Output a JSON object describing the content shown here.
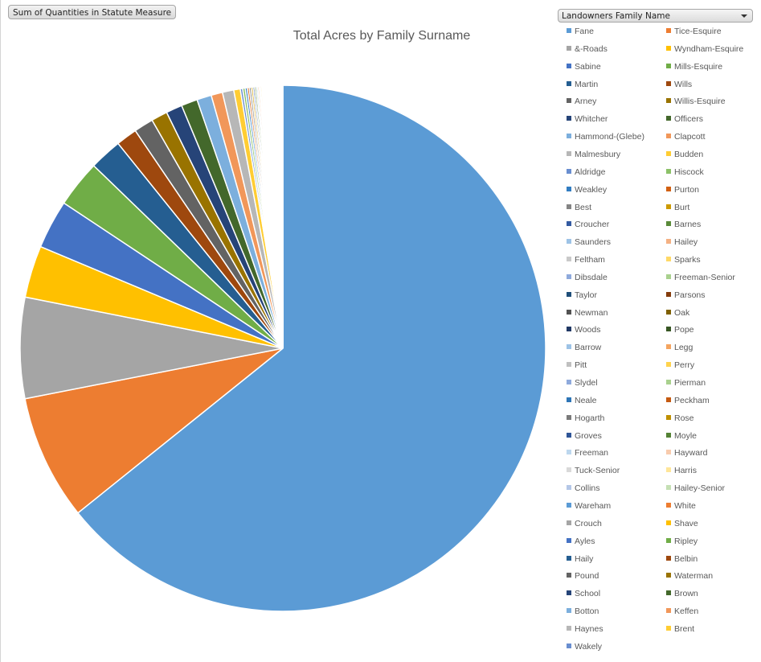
{
  "field_button": {
    "label": "Sum of Quantities in Statute Measure"
  },
  "legend_filter": {
    "label": "Landowners Family Name"
  },
  "chart_data": {
    "type": "pie",
    "title": "Total Acres by Family Surname",
    "legend_position": "right",
    "start_angle": 0,
    "direction": "clockwise",
    "unit": "percent of total (estimated)",
    "categories": [
      "Fane",
      "Tice-Esquire",
      "&-Roads",
      "Wyndham-Esquire",
      "Sabine",
      "Mills-Esquire",
      "Martin",
      "Wills",
      "Arney",
      "Willis-Esquire",
      "Whitcher",
      "Officers",
      "Hammond-(Glebe)",
      "Clapcott",
      "Malmesbury",
      "Budden",
      "Aldridge",
      "Hiscock",
      "Weakley",
      "Purton",
      "Best",
      "Burt",
      "Croucher",
      "Barnes",
      "Saunders",
      "Hailey",
      "Feltham",
      "Sparks",
      "Dibsdale",
      "Freeman-Senior",
      "Taylor",
      "Parsons",
      "Newman",
      "Oak",
      "Woods",
      "Pope",
      "Barrow",
      "Legg",
      "Pitt",
      "Perry",
      "Slydel",
      "Pierman",
      "Neale",
      "Peckham",
      "Hogarth",
      "Rose",
      "Groves",
      "Moyle",
      "Freeman",
      "Hayward",
      "Tuck-Senior",
      "Harris",
      "Collins",
      "Hailey-Senior",
      "Wareham",
      "White",
      "Crouch",
      "Shave",
      "Ayles",
      "Ripley",
      "Haily",
      "Belbin",
      "Pound",
      "Waterman",
      "School",
      "Brown",
      "Botton",
      "Keffen",
      "Haynes",
      "Brent",
      "Wakely"
    ],
    "values": [
      64.3,
      7.7,
      6.2,
      3.2,
      3.0,
      2.9,
      2.0,
      1.3,
      1.2,
      1.0,
      1.0,
      1.0,
      0.9,
      0.7,
      0.7,
      0.4,
      0.15,
      0.15,
      0.13,
      0.12,
      0.12,
      0.11,
      0.1,
      0.1,
      0.09,
      0.09,
      0.08,
      0.08,
      0.07,
      0.07,
      0.07,
      0.06,
      0.06,
      0.06,
      0.05,
      0.05,
      0.05,
      0.05,
      0.04,
      0.04,
      0.04,
      0.04,
      0.04,
      0.03,
      0.03,
      0.03,
      0.03,
      0.03,
      0.03,
      0.02,
      0.02,
      0.02,
      0.02,
      0.02,
      0.02,
      0.02,
      0.02,
      0.02,
      0.01,
      0.01,
      0.01,
      0.01,
      0.01,
      0.01,
      0.01,
      0.01,
      0.01,
      0.01,
      0.01,
      0.01,
      0.01
    ],
    "colors": [
      "#5b9bd5",
      "#ed7d31",
      "#a5a5a5",
      "#ffc000",
      "#4472c4",
      "#70ad47",
      "#255e91",
      "#9e480e",
      "#636363",
      "#997300",
      "#264478",
      "#43682b",
      "#7cafdd",
      "#f1975a",
      "#b7b7b7",
      "#ffcd33",
      "#698ed0",
      "#8cc168",
      "#327dc2",
      "#d26012",
      "#848484",
      "#cc9a00",
      "#335aa1",
      "#5a8a39",
      "#9dc3e6",
      "#f4b183",
      "#c9c9c9",
      "#ffd966",
      "#8faadc",
      "#a9d18e",
      "#1f4e79",
      "#843c0c",
      "#525252",
      "#7f6000",
      "#203864",
      "#375623",
      "#9dc3e6",
      "#f4a460",
      "#c0c0c0",
      "#ffd34d",
      "#8faadc",
      "#a9d18e",
      "#2e75b6",
      "#c55a11",
      "#7a7a7a",
      "#bf9000",
      "#2f5597",
      "#548235",
      "#bdd7ee",
      "#f8cbad",
      "#d9d9d9",
      "#ffe699",
      "#b4c7e7",
      "#c5e0b4",
      "#5b9bd5",
      "#ed7d31",
      "#a5a5a5",
      "#ffc000",
      "#4472c4",
      "#70ad47",
      "#255e91",
      "#9e480e",
      "#636363",
      "#997300",
      "#264478",
      "#43682b",
      "#7cafdd",
      "#f1975a",
      "#b7b7b7",
      "#ffcd33",
      "#698ed0"
    ]
  }
}
